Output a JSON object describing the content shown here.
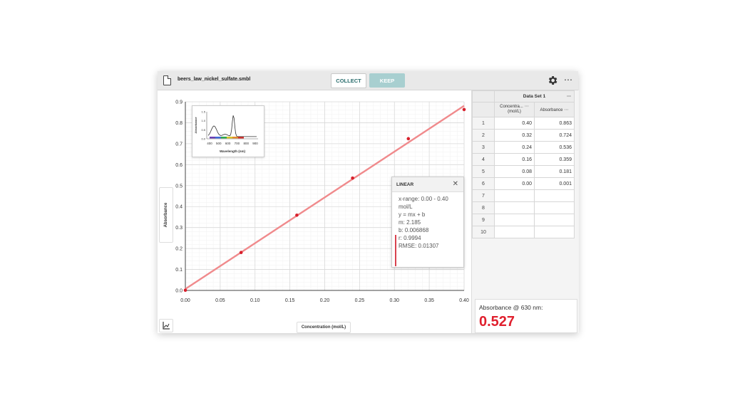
{
  "toolbar": {
    "file_name": "beers_law_nickel_sulfate.smbl",
    "collect_label": "COLLECT",
    "keep_label": "KEEP",
    "more_label": "⋯"
  },
  "graph": {
    "y_axis_label": "Absorbance",
    "x_axis_label": "Concentration (mol/L)",
    "fit_color": "#f08a8c",
    "point_color": "#d8202c"
  },
  "inset": {
    "xlabel": "Wavelength (nm)",
    "ylabel": "Absorbance",
    "y_ticks": [
      "1.5",
      "1.0",
      "0.5",
      "0.0"
    ],
    "x_ticks": [
      "400",
      "500",
      "600",
      "700",
      "800",
      "900"
    ]
  },
  "linear_fit": {
    "title": "LINEAR",
    "x_range": "x-range: 0.00 - 0.40",
    "x_range_unit": "mol/L",
    "equation": "y = mx + b",
    "m": "m: 2.185",
    "b": "b: 0.006868",
    "r": "r: 0.9994",
    "rmse": "RMSE: 0.01307"
  },
  "table": {
    "dataset_title": "Data Set 1",
    "col1_header": "Concentra...",
    "col1_unit": "(mol/L)",
    "col2_header": "Absorbance",
    "rows": [
      {
        "n": "1",
        "c": "0.40",
        "a": "0.863"
      },
      {
        "n": "2",
        "c": "0.32",
        "a": "0.724"
      },
      {
        "n": "3",
        "c": "0.24",
        "a": "0.536"
      },
      {
        "n": "4",
        "c": "0.16",
        "a": "0.359"
      },
      {
        "n": "5",
        "c": "0.08",
        "a": "0.181"
      },
      {
        "n": "6",
        "c": "0.00",
        "a": "0.001"
      },
      {
        "n": "7",
        "c": "",
        "a": ""
      },
      {
        "n": "8",
        "c": "",
        "a": ""
      },
      {
        "n": "9",
        "c": "",
        "a": ""
      },
      {
        "n": "10",
        "c": "",
        "a": ""
      }
    ]
  },
  "meter": {
    "label": "Absorbance @ 630 nm:",
    "value": "0.527"
  },
  "chart_data": {
    "type": "scatter",
    "xlabel": "Concentration (mol/L)",
    "ylabel": "Absorbance",
    "xlim": [
      0,
      0.4
    ],
    "ylim": [
      0,
      0.9
    ],
    "x_ticks": [
      "0.00",
      "0.05",
      "0.10",
      "0.15",
      "0.20",
      "0.25",
      "0.30",
      "0.35",
      "0.40"
    ],
    "y_ticks": [
      "0.0",
      "0.1",
      "0.2",
      "0.3",
      "0.4",
      "0.5",
      "0.6",
      "0.7",
      "0.8",
      "0.9"
    ],
    "x": [
      0.0,
      0.08,
      0.16,
      0.24,
      0.32,
      0.4
    ],
    "y": [
      0.001,
      0.181,
      0.359,
      0.536,
      0.724,
      0.863
    ],
    "fit": {
      "m": 2.185,
      "b": 0.006868
    },
    "grid": true
  }
}
